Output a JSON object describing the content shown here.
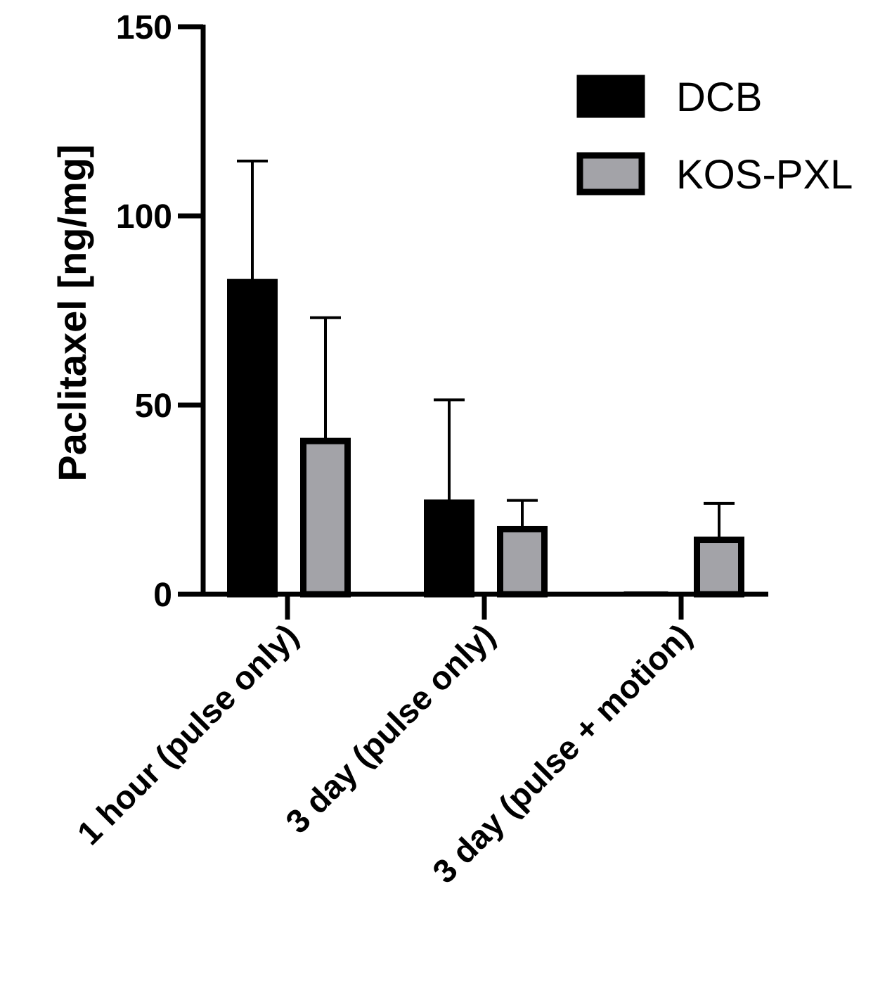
{
  "chart_data": {
    "type": "bar",
    "title": "",
    "xlabel": "",
    "ylabel": "Paclitaxel [ng/mg]",
    "ylim": [
      0,
      150
    ],
    "yticks": [
      "0",
      "50",
      "100",
      "150"
    ],
    "categories": [
      "1 hour (pulse only)",
      "3 day (pulse only)",
      "3 day (pulse + motion)"
    ],
    "series": [
      {
        "name": "DCB",
        "values": [
          82.5,
          24.2,
          0.2
        ],
        "error": [
          32.0,
          27.2,
          0
        ],
        "color": "#000000"
      },
      {
        "name": "KOS-PXL",
        "values": [
          40.5,
          17.2,
          14.4
        ],
        "error": [
          32.6,
          7.6,
          9.6
        ],
        "color": "#a3a3a8"
      }
    ],
    "legend": "top-right",
    "grid": false
  }
}
